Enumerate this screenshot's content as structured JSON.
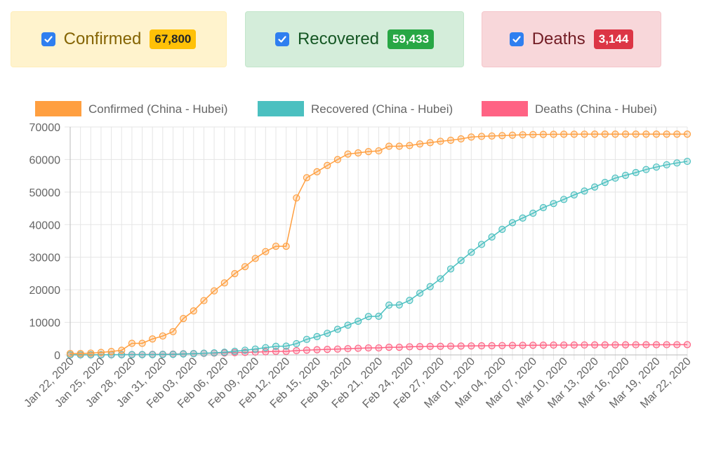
{
  "cards": [
    {
      "id": "confirmed",
      "label": "Confirmed",
      "count": "67,800",
      "checked": true
    },
    {
      "id": "recovered",
      "label": "Recovered",
      "count": "59,433",
      "checked": true
    },
    {
      "id": "deaths",
      "label": "Deaths",
      "count": "3,144",
      "checked": true
    }
  ],
  "colors": {
    "confirmed": "#ff9f40",
    "recovered": "#4bc0c0",
    "deaths": "#ff6384",
    "grid": "#e5e5e5",
    "tick_text": "#666666"
  },
  "chart_data": {
    "type": "line",
    "legend_position": "top",
    "grid": true,
    "ylim": [
      0,
      70000
    ],
    "yticks": [
      "0",
      "10000",
      "20000",
      "30000",
      "40000",
      "50000",
      "60000",
      "70000"
    ],
    "x_tick_labels": [
      "Jan 22, 2020",
      "Jan 25, 2020",
      "Jan 28, 2020",
      "Jan 31, 2020",
      "Feb 03, 2020",
      "Feb 06, 2020",
      "Feb 09, 2020",
      "Feb 12, 2020",
      "Feb 15, 2020",
      "Feb 18, 2020",
      "Feb 21, 2020",
      "Feb 24, 2020",
      "Feb 27, 2020",
      "Mar 01, 2020",
      "Mar 04, 2020",
      "Mar 07, 2020",
      "Mar 10, 2020",
      "Mar 13, 2020",
      "Mar 16, 2020",
      "Mar 19, 2020",
      "Mar 22, 2020"
    ],
    "x": [
      "Jan 22, 2020",
      "Jan 23, 2020",
      "Jan 24, 2020",
      "Jan 25, 2020",
      "Jan 26, 2020",
      "Jan 27, 2020",
      "Jan 28, 2020",
      "Jan 29, 2020",
      "Jan 30, 2020",
      "Jan 31, 2020",
      "Feb 01, 2020",
      "Feb 02, 2020",
      "Feb 03, 2020",
      "Feb 04, 2020",
      "Feb 05, 2020",
      "Feb 06, 2020",
      "Feb 07, 2020",
      "Feb 08, 2020",
      "Feb 09, 2020",
      "Feb 10, 2020",
      "Feb 11, 2020",
      "Feb 12, 2020",
      "Feb 13, 2020",
      "Feb 14, 2020",
      "Feb 15, 2020",
      "Feb 16, 2020",
      "Feb 17, 2020",
      "Feb 18, 2020",
      "Feb 19, 2020",
      "Feb 20, 2020",
      "Feb 21, 2020",
      "Feb 22, 2020",
      "Feb 23, 2020",
      "Feb 24, 2020",
      "Feb 25, 2020",
      "Feb 26, 2020",
      "Feb 27, 2020",
      "Feb 28, 2020",
      "Feb 29, 2020",
      "Mar 01, 2020",
      "Mar 02, 2020",
      "Mar 03, 2020",
      "Mar 04, 2020",
      "Mar 05, 2020",
      "Mar 06, 2020",
      "Mar 07, 2020",
      "Mar 08, 2020",
      "Mar 09, 2020",
      "Mar 10, 2020",
      "Mar 11, 2020",
      "Mar 12, 2020",
      "Mar 13, 2020",
      "Mar 14, 2020",
      "Mar 15, 2020",
      "Mar 16, 2020",
      "Mar 17, 2020",
      "Mar 18, 2020",
      "Mar 19, 2020",
      "Mar 20, 2020",
      "Mar 21, 2020",
      "Mar 22, 2020"
    ],
    "series": [
      {
        "name": "Confirmed (China - Hubei)",
        "color_key": "confirmed",
        "values": [
          444,
          444,
          549,
          761,
          1058,
          1423,
          3554,
          3554,
          4903,
          5806,
          7153,
          11177,
          13522,
          16678,
          19665,
          22112,
          24953,
          27100,
          29631,
          31728,
          33366,
          33366,
          48206,
          54406,
          56249,
          58182,
          59989,
          61682,
          62031,
          62442,
          62662,
          64084,
          64084,
          64287,
          64786,
          65187,
          65596,
          65914,
          66337,
          66907,
          67103,
          67217,
          67332,
          67466,
          67592,
          67666,
          67707,
          67743,
          67760,
          67773,
          67781,
          67786,
          67790,
          67794,
          67798,
          67799,
          67800,
          67800,
          67800,
          67800,
          67800
        ]
      },
      {
        "name": "Recovered (China - Hubei)",
        "color_key": "recovered",
        "values": [
          28,
          28,
          31,
          32,
          42,
          45,
          80,
          88,
          90,
          141,
          168,
          295,
          386,
          522,
          633,
          817,
          1115,
          1439,
          1795,
          2222,
          2639,
          2686,
          3459,
          4774,
          5623,
          6639,
          7862,
          9128,
          10337,
          11788,
          11881,
          15299,
          15343,
          16748,
          18971,
          20969,
          23383,
          26403,
          28993,
          31536,
          33934,
          36208,
          38557,
          40592,
          42033,
          43500,
          45235,
          46488,
          47743,
          49134,
          50318,
          51553,
          52960,
          54288,
          55142,
          56003,
          56927,
          57682,
          58382,
          58946,
          59433
        ]
      },
      {
        "name": "Deaths (China - Hubei)",
        "color_key": "deaths",
        "values": [
          17,
          17,
          24,
          40,
          52,
          76,
          125,
          125,
          162,
          204,
          249,
          350,
          414,
          479,
          549,
          618,
          699,
          780,
          871,
          974,
          1068,
          1068,
          1310,
          1457,
          1596,
          1696,
          1789,
          1921,
          2029,
          2144,
          2144,
          2346,
          2346,
          2495,
          2563,
          2615,
          2641,
          2682,
          2727,
          2761,
          2803,
          2835,
          2871,
          2902,
          2931,
          2959,
          2986,
          3008,
          3024,
          3046,
          3056,
          3062,
          3075,
          3085,
          3099,
          3111,
          3122,
          3130,
          3133,
          3139,
          3144
        ]
      }
    ]
  }
}
